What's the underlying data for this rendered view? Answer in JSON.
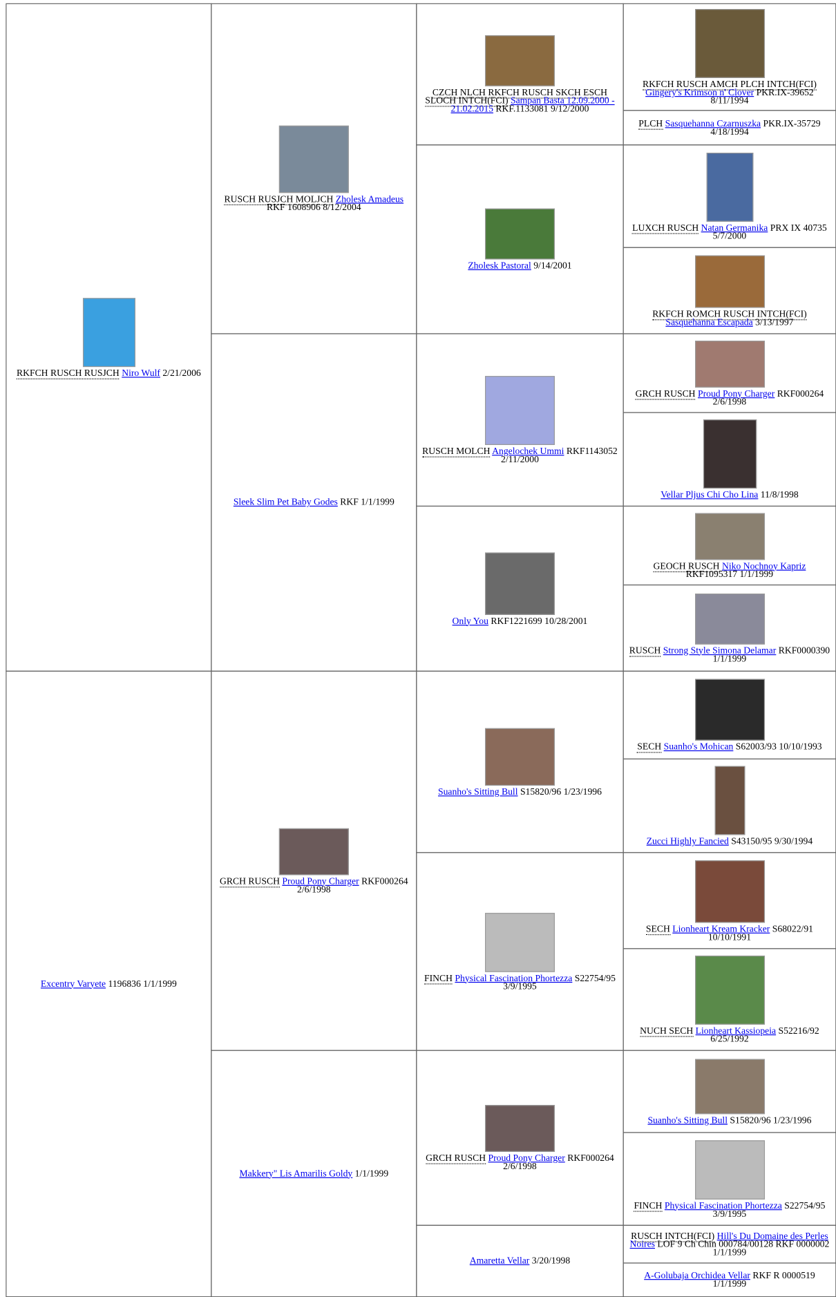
{
  "pedigree": [
    {
      "titles": "RKFCH RUSCH RUSJCH",
      "name": "Niro Wulf",
      "info": "2/21/2006"
    },
    {
      "name": "Excentry Varyete",
      "info": "1196836 1/1/1999"
    },
    {
      "titles": "RUSCH RUSJCH MOLJCH",
      "name": "Zholesk Amadeus",
      "info": "RKF 1608906 8/12/2004"
    },
    {
      "name": "Sleek Slim Pet Baby Godes",
      "info": "RKF 1/1/1999"
    },
    {
      "titles": "GRCH RUSCH",
      "name": "Proud Pony Charger",
      "info": "RKF000264 2/6/1998"
    },
    {
      "name": "Makkery\" Lis Amarilis Goldy",
      "info": "1/1/1999"
    },
    {
      "titles": "CZCH NLCH RKFCH RUSCH SKCH ESCH SLOCH INTCH(FCI)",
      "name": "Sampan Basta 12.09.2000 - 21.02.2015",
      "info": "RKF.1133081 9/12/2000"
    },
    {
      "name": "Zholesk Pastoral",
      "info": "9/14/2001"
    },
    {
      "titles": "RUSCH MOLCH",
      "name": "Angelochek Ummi",
      "info": "RKF1143052 2/11/2000"
    },
    {
      "name": "Only You",
      "info": "RKF1221699 10/28/2001"
    },
    {
      "name": "Suanho's Sitting Bull",
      "info": "S15820/96 1/23/1996"
    },
    {
      "titles": "FINCH",
      "name": "Physical Fascination Phortezza",
      "info": "S22754/95 3/9/1995"
    },
    {
      "titles": "GRCH RUSCH",
      "name": "Proud Pony Charger",
      "info": "RKF000264 2/6/1998"
    },
    {
      "name": "Amaretta Vellar",
      "info": "3/20/1998"
    },
    {
      "titles": "RKFCH RUSCH AMCH PLCH INTCH(FCI)",
      "name": "Gingery's Krimson n' Clover",
      "info": "PKR.IX-39652 8/11/1994"
    },
    {
      "titles": "PLCH",
      "name": "Sasquehanna Czarnuszka",
      "info": "PKR.IX-35729 4/18/1994"
    },
    {
      "titles": "LUXCH RUSCH",
      "name": "Natan Germanika",
      "info": "PRX IX 40735 5/7/2000"
    },
    {
      "titles": "RKFCH ROMCH RUSCH INTCH(FCI)",
      "name": "Sasquehanna Escapada",
      "info": "3/13/1997"
    },
    {
      "titles": "GRCH RUSCH",
      "name": "Proud Pony Charger",
      "info": "RKF000264 2/6/1998"
    },
    {
      "name": "Vellar Pljus Chi Cho Lina",
      "info": "11/8/1998"
    },
    {
      "titles": "GEOCH RUSCH",
      "name": "Niko Nochnoy Kapriz",
      "info": "RKF1095317 1/1/1999"
    },
    {
      "titles": "RUSCH",
      "name": "Strong Style Simona Delamar",
      "info": "RKF0000390 1/1/1999"
    },
    {
      "titles": "SECH",
      "name": "Suanho's Mohican",
      "info": "S62003/93 10/10/1993"
    },
    {
      "name": "Zucci Highly Fancied",
      "info": "S43150/95 9/30/1994"
    },
    {
      "titles": "SECH",
      "name": "Lionheart Kream Kracker",
      "info": "S68022/91 10/10/1991"
    },
    {
      "titles": "NUCH SECH",
      "name": "Lionheart Kassiopeia",
      "info": "S52216/92 6/25/1992"
    },
    {
      "name": "Suanho's Sitting Bull",
      "info": "S15820/96 1/23/1996"
    },
    {
      "titles": "FINCH",
      "name": "Physical Fascination Phortezza",
      "info": "S22754/95 3/9/1995"
    },
    {
      "titles": "RUSCH INTCH(FCI)",
      "name": "Hill's Du Domaine des Perles Noires",
      "info": "LOF 9 Ch Chin 000784/00128 RKF 0000002 1/1/1999"
    },
    {
      "name": "A-Golubaja Orchidea Vellar",
      "info": "RKF R 0000519 1/1/1999"
    }
  ]
}
